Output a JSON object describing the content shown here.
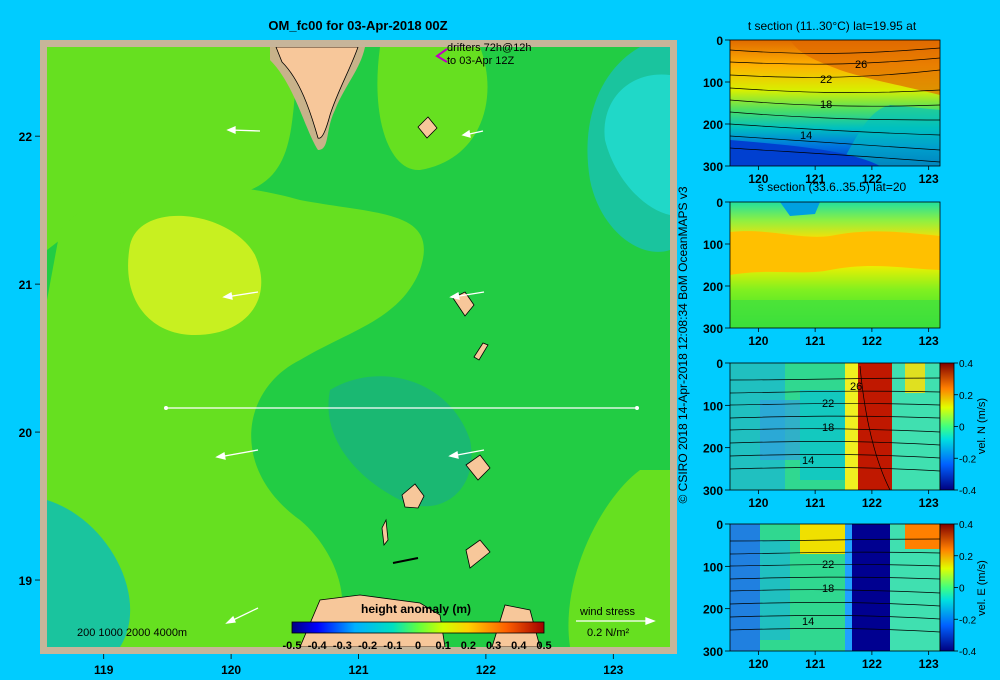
{
  "main_map": {
    "title": "OM_fc00 for 03-Apr-2018 00Z",
    "drifters_label_line1": "drifters 72h@12h",
    "drifters_label_line2": "to 03-Apr 12Z",
    "depth_contours_label": "200  1000  2000  4000m",
    "colorbar_title": "height anomaly  (m)",
    "colorbar_ticks": [
      "-0.5",
      "-0.4",
      "-0.3",
      "-0.2",
      "-0.1",
      "0",
      "0.1",
      "0.2",
      "0.3",
      "0.4",
      "0.5"
    ],
    "wind_stress_label": "wind stress",
    "wind_stress_units": "0.2 N/m²",
    "x_ticks": [
      "119",
      "120",
      "121",
      "122",
      "123"
    ],
    "y_ticks": [
      "22",
      "21",
      "20",
      "19"
    ],
    "colors": {
      "land": "#f7c79a",
      "shelf": "#c8b28a",
      "frame": "#c7b59a",
      "background": "#00ccff"
    }
  },
  "credit": "© CSIRO 2018   14-Apr-2018 12:08:34 BoM OceanMAPS v3",
  "panels": [
    {
      "title": "t section (11..30°C) lat=19.95 at",
      "y_ticks": [
        "0",
        "100",
        "200",
        "300"
      ],
      "x_ticks": [
        "120",
        "121",
        "122",
        "123"
      ],
      "contour_labels": [
        "26",
        "22",
        "18",
        "14"
      ]
    },
    {
      "title": "s section (33.6..35.5) lat=20",
      "y_ticks": [
        "0",
        "100",
        "200",
        "300"
      ],
      "x_ticks": [
        "120",
        "121",
        "122",
        "123"
      ],
      "contour_labels": []
    },
    {
      "title": "",
      "y_ticks": [
        "0",
        "100",
        "200",
        "300"
      ],
      "x_ticks": [
        "120",
        "121",
        "122",
        "123"
      ],
      "contour_labels": [
        "26",
        "22",
        "18",
        "14"
      ],
      "colorbar_label": "vel. N (m/s)",
      "colorbar_ticks": [
        "0.4",
        "0.2",
        "0",
        "-0.2",
        "-0.4"
      ]
    },
    {
      "title": "",
      "y_ticks": [
        "0",
        "100",
        "200",
        "300"
      ],
      "x_ticks": [
        "120",
        "121",
        "122",
        "123"
      ],
      "contour_labels": [
        "22",
        "18",
        "14"
      ],
      "colorbar_label": "vel. E (m/s)",
      "colorbar_ticks": [
        "0.4",
        "0.2",
        "0",
        "-0.2",
        "-0.4"
      ]
    }
  ],
  "chart_data": [
    {
      "type": "heatmap",
      "title": "OM_fc00 for 03-Apr-2018 00Z",
      "xlabel": "",
      "ylabel": "",
      "xlim": [
        118.5,
        123.5
      ],
      "ylim": [
        18.5,
        22.65
      ],
      "colorbar": {
        "label": "height anomaly  (m)",
        "range": [
          -0.5,
          0.5
        ]
      },
      "section_line": {
        "lat": 20.0,
        "lon_range": [
          119.5,
          123.2
        ]
      },
      "height_anomaly_patches": [
        {
          "region": "west high",
          "center": [
            119.7,
            20.95
          ],
          "value": 0.15
        },
        {
          "region": "northeast low",
          "center": [
            123.2,
            22.1
          ],
          "value": -0.08
        },
        {
          "region": "southwest low",
          "center": [
            119.0,
            18.7
          ],
          "value": -0.08
        }
      ]
    },
    {
      "type": "heatmap",
      "title": "t section (11..30°C) lat=19.95 at",
      "xlim": [
        119.5,
        123.2
      ],
      "ylim": [
        300,
        0
      ],
      "contour_labels": [
        26,
        22,
        18,
        14
      ]
    },
    {
      "type": "heatmap",
      "title": "s section (33.6..35.5) lat=20",
      "xlim": [
        119.5,
        123.2
      ],
      "ylim": [
        300,
        0
      ]
    },
    {
      "type": "heatmap",
      "title": "",
      "xlim": [
        119.5,
        123.2
      ],
      "ylim": [
        300,
        0
      ],
      "colorbar": {
        "label": "vel. N (m/s)",
        "range": [
          -0.4,
          0.4
        ]
      }
    },
    {
      "type": "heatmap",
      "title": "",
      "xlim": [
        119.5,
        123.2
      ],
      "ylim": [
        300,
        0
      ],
      "colorbar": {
        "label": "vel. E (m/s)",
        "range": [
          -0.4,
          0.4
        ]
      }
    }
  ]
}
